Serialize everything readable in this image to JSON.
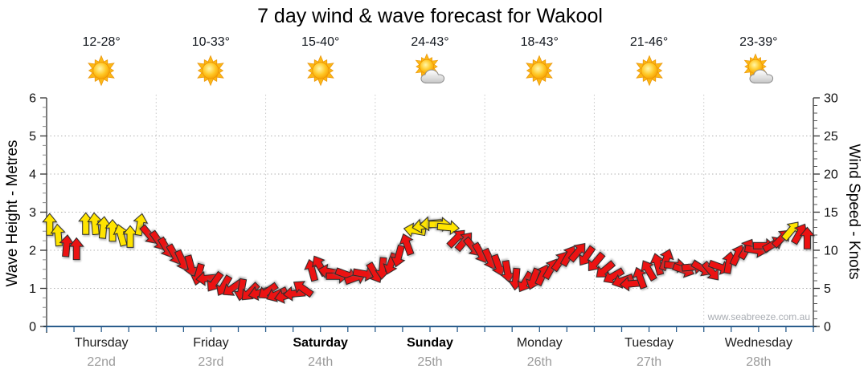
{
  "chart": {
    "title": "7 day wind & wave forecast for Wakool",
    "watermark": "www.seabreeze.com.au",
    "left_axis": {
      "label": "Wave Height - Metres",
      "min": 0,
      "max": 6,
      "major_step": 1,
      "minor_step": 0.25,
      "ticks": [
        "0",
        "1",
        "2",
        "3",
        "4",
        "5",
        "6"
      ]
    },
    "right_axis": {
      "label": "Wind Speed - Knots",
      "min": 0,
      "max": 30,
      "major_step": 5,
      "minor_step": 1,
      "ticks": [
        "0",
        "5",
        "10",
        "15",
        "20",
        "25",
        "30"
      ]
    },
    "grid": {
      "horizontal_dotted": true,
      "vertical_day_dividers": true
    },
    "colors": {
      "arrow_yellow": "#FFE400",
      "arrow_red": "#EC1212",
      "arrow_outline": "#2a2a2a",
      "gridline": "#b3b3b3",
      "day_divider": "#c9c9c9",
      "axis_black": "#333333",
      "axis_blue": "#2a5d8c",
      "date_gray": "#9b9b9b",
      "watermark_gray": "#a9adb3"
    }
  },
  "days": [
    {
      "name": "Thursday",
      "date": "22nd",
      "temp": "12-28°",
      "icon": "sun",
      "bold": false
    },
    {
      "name": "Friday",
      "date": "23rd",
      "temp": "10-33°",
      "icon": "sun",
      "bold": false
    },
    {
      "name": "Saturday",
      "date": "24th",
      "temp": "15-40°",
      "icon": "sun",
      "bold": true
    },
    {
      "name": "Sunday",
      "date": "25th",
      "temp": "24-43°",
      "icon": "sun-cloud",
      "bold": true
    },
    {
      "name": "Monday",
      "date": "26th",
      "temp": "18-43°",
      "icon": "sun",
      "bold": false
    },
    {
      "name": "Tuesday",
      "date": "27th",
      "temp": "21-46°",
      "icon": "sun",
      "bold": false
    },
    {
      "name": "Wednesday",
      "date": "28th",
      "temp": "23-39°",
      "icon": "sun-cloud",
      "bold": false
    }
  ],
  "chart_data": {
    "type": "wind-vector-timeseries",
    "title": "7 day wind & wave forecast for Wakool",
    "x_categories": [
      "Thursday 22nd",
      "Friday 23rd",
      "Saturday 24th",
      "Sunday 25th",
      "Monday 26th",
      "Tuesday 27th",
      "Wednesday 28th"
    ],
    "y_left": {
      "label": "Wave Height - Metres",
      "range": [
        0,
        6
      ]
    },
    "y_right": {
      "label": "Wind Speed - Knots",
      "range": [
        0,
        30
      ]
    },
    "legend": "none",
    "arrow_fields": [
      "t_fraction_of_week",
      "speed_knots",
      "direction_deg_cw_from_up",
      "color Y|R"
    ],
    "arrows": [
      [
        0.004,
        13.4,
        0,
        "Y"
      ],
      [
        0.015,
        12.0,
        355,
        "Y"
      ],
      [
        0.026,
        10.6,
        5,
        "R"
      ],
      [
        0.039,
        10.2,
        0,
        "R"
      ],
      [
        0.051,
        13.5,
        0,
        "Y"
      ],
      [
        0.063,
        13.5,
        355,
        "Y"
      ],
      [
        0.074,
        13.0,
        5,
        "Y"
      ],
      [
        0.086,
        12.6,
        0,
        "Y"
      ],
      [
        0.097,
        12.0,
        345,
        "Y"
      ],
      [
        0.109,
        11.8,
        0,
        "Y"
      ],
      [
        0.122,
        13.4,
        10,
        "Y"
      ],
      [
        0.134,
        12.0,
        140,
        "R"
      ],
      [
        0.146,
        11.2,
        145,
        "R"
      ],
      [
        0.156,
        10.3,
        150,
        "R"
      ],
      [
        0.167,
        9.4,
        150,
        "R"
      ],
      [
        0.177,
        8.6,
        155,
        "R"
      ],
      [
        0.188,
        7.9,
        165,
        "R"
      ],
      [
        0.198,
        6.8,
        195,
        "R"
      ],
      [
        0.209,
        6.3,
        265,
        "R"
      ],
      [
        0.219,
        5.8,
        215,
        "R"
      ],
      [
        0.231,
        5.3,
        210,
        "R"
      ],
      [
        0.242,
        5.0,
        235,
        "R"
      ],
      [
        0.254,
        4.8,
        190,
        "R"
      ],
      [
        0.265,
        4.5,
        225,
        "R"
      ],
      [
        0.277,
        4.4,
        255,
        "R"
      ],
      [
        0.288,
        4.6,
        235,
        "R"
      ],
      [
        0.3,
        4.2,
        245,
        "R"
      ],
      [
        0.311,
        4.0,
        255,
        "R"
      ],
      [
        0.323,
        4.3,
        265,
        "R"
      ],
      [
        0.334,
        5.0,
        305,
        "R"
      ],
      [
        0.346,
        7.4,
        345,
        "R"
      ],
      [
        0.356,
        8.0,
        330,
        "R"
      ],
      [
        0.368,
        7.2,
        280,
        "R"
      ],
      [
        0.379,
        6.6,
        90,
        "R"
      ],
      [
        0.391,
        6.8,
        110,
        "R"
      ],
      [
        0.403,
        6.4,
        70,
        "R"
      ],
      [
        0.414,
        6.9,
        100,
        "R"
      ],
      [
        0.428,
        7.0,
        150,
        "R"
      ],
      [
        0.438,
        7.6,
        185,
        "R"
      ],
      [
        0.449,
        8.2,
        200,
        "R"
      ],
      [
        0.459,
        9.2,
        195,
        "R"
      ],
      [
        0.47,
        10.8,
        340,
        "R"
      ],
      [
        0.48,
        12.6,
        280,
        "Y"
      ],
      [
        0.491,
        13.2,
        260,
        "Y"
      ],
      [
        0.501,
        13.5,
        265,
        "Y"
      ],
      [
        0.513,
        13.4,
        90,
        "Y"
      ],
      [
        0.524,
        13.0,
        95,
        "Y"
      ],
      [
        0.535,
        11.6,
        45,
        "R"
      ],
      [
        0.545,
        11.2,
        40,
        "R"
      ],
      [
        0.556,
        10.4,
        140,
        "R"
      ],
      [
        0.566,
        9.6,
        150,
        "R"
      ],
      [
        0.578,
        8.8,
        155,
        "R"
      ],
      [
        0.589,
        8.0,
        160,
        "R"
      ],
      [
        0.601,
        7.2,
        170,
        "R"
      ],
      [
        0.612,
        6.2,
        185,
        "R"
      ],
      [
        0.624,
        5.8,
        210,
        "R"
      ],
      [
        0.635,
        6.2,
        200,
        "R"
      ],
      [
        0.647,
        6.8,
        25,
        "R"
      ],
      [
        0.658,
        7.6,
        30,
        "R"
      ],
      [
        0.67,
        8.6,
        35,
        "R"
      ],
      [
        0.681,
        9.3,
        30,
        "R"
      ],
      [
        0.693,
        9.8,
        40,
        "R"
      ],
      [
        0.704,
        9.2,
        215,
        "R"
      ],
      [
        0.716,
        8.4,
        220,
        "R"
      ],
      [
        0.728,
        7.4,
        230,
        "R"
      ],
      [
        0.739,
        6.6,
        240,
        "R"
      ],
      [
        0.751,
        6.0,
        250,
        "R"
      ],
      [
        0.762,
        5.6,
        265,
        "R"
      ],
      [
        0.774,
        6.4,
        340,
        "R"
      ],
      [
        0.785,
        7.4,
        330,
        "R"
      ],
      [
        0.797,
        8.2,
        345,
        "R"
      ],
      [
        0.808,
        8.8,
        20,
        "R"
      ],
      [
        0.82,
        8.0,
        95,
        "R"
      ],
      [
        0.831,
        7.4,
        110,
        "R"
      ],
      [
        0.843,
        7.8,
        85,
        "R"
      ],
      [
        0.855,
        7.6,
        120,
        "R"
      ],
      [
        0.867,
        7.2,
        140,
        "R"
      ],
      [
        0.878,
        7.8,
        110,
        "R"
      ],
      [
        0.89,
        8.4,
        10,
        "R"
      ],
      [
        0.901,
        9.4,
        25,
        "R"
      ],
      [
        0.913,
        10.2,
        30,
        "R"
      ],
      [
        0.925,
        10.0,
        100,
        "R"
      ],
      [
        0.936,
        10.6,
        90,
        "R"
      ],
      [
        0.948,
        10.8,
        60,
        "R"
      ],
      [
        0.959,
        11.6,
        45,
        "R"
      ],
      [
        0.971,
        12.6,
        40,
        "Y"
      ],
      [
        0.982,
        12.2,
        30,
        "R"
      ],
      [
        0.992,
        11.6,
        0,
        "R"
      ]
    ]
  }
}
